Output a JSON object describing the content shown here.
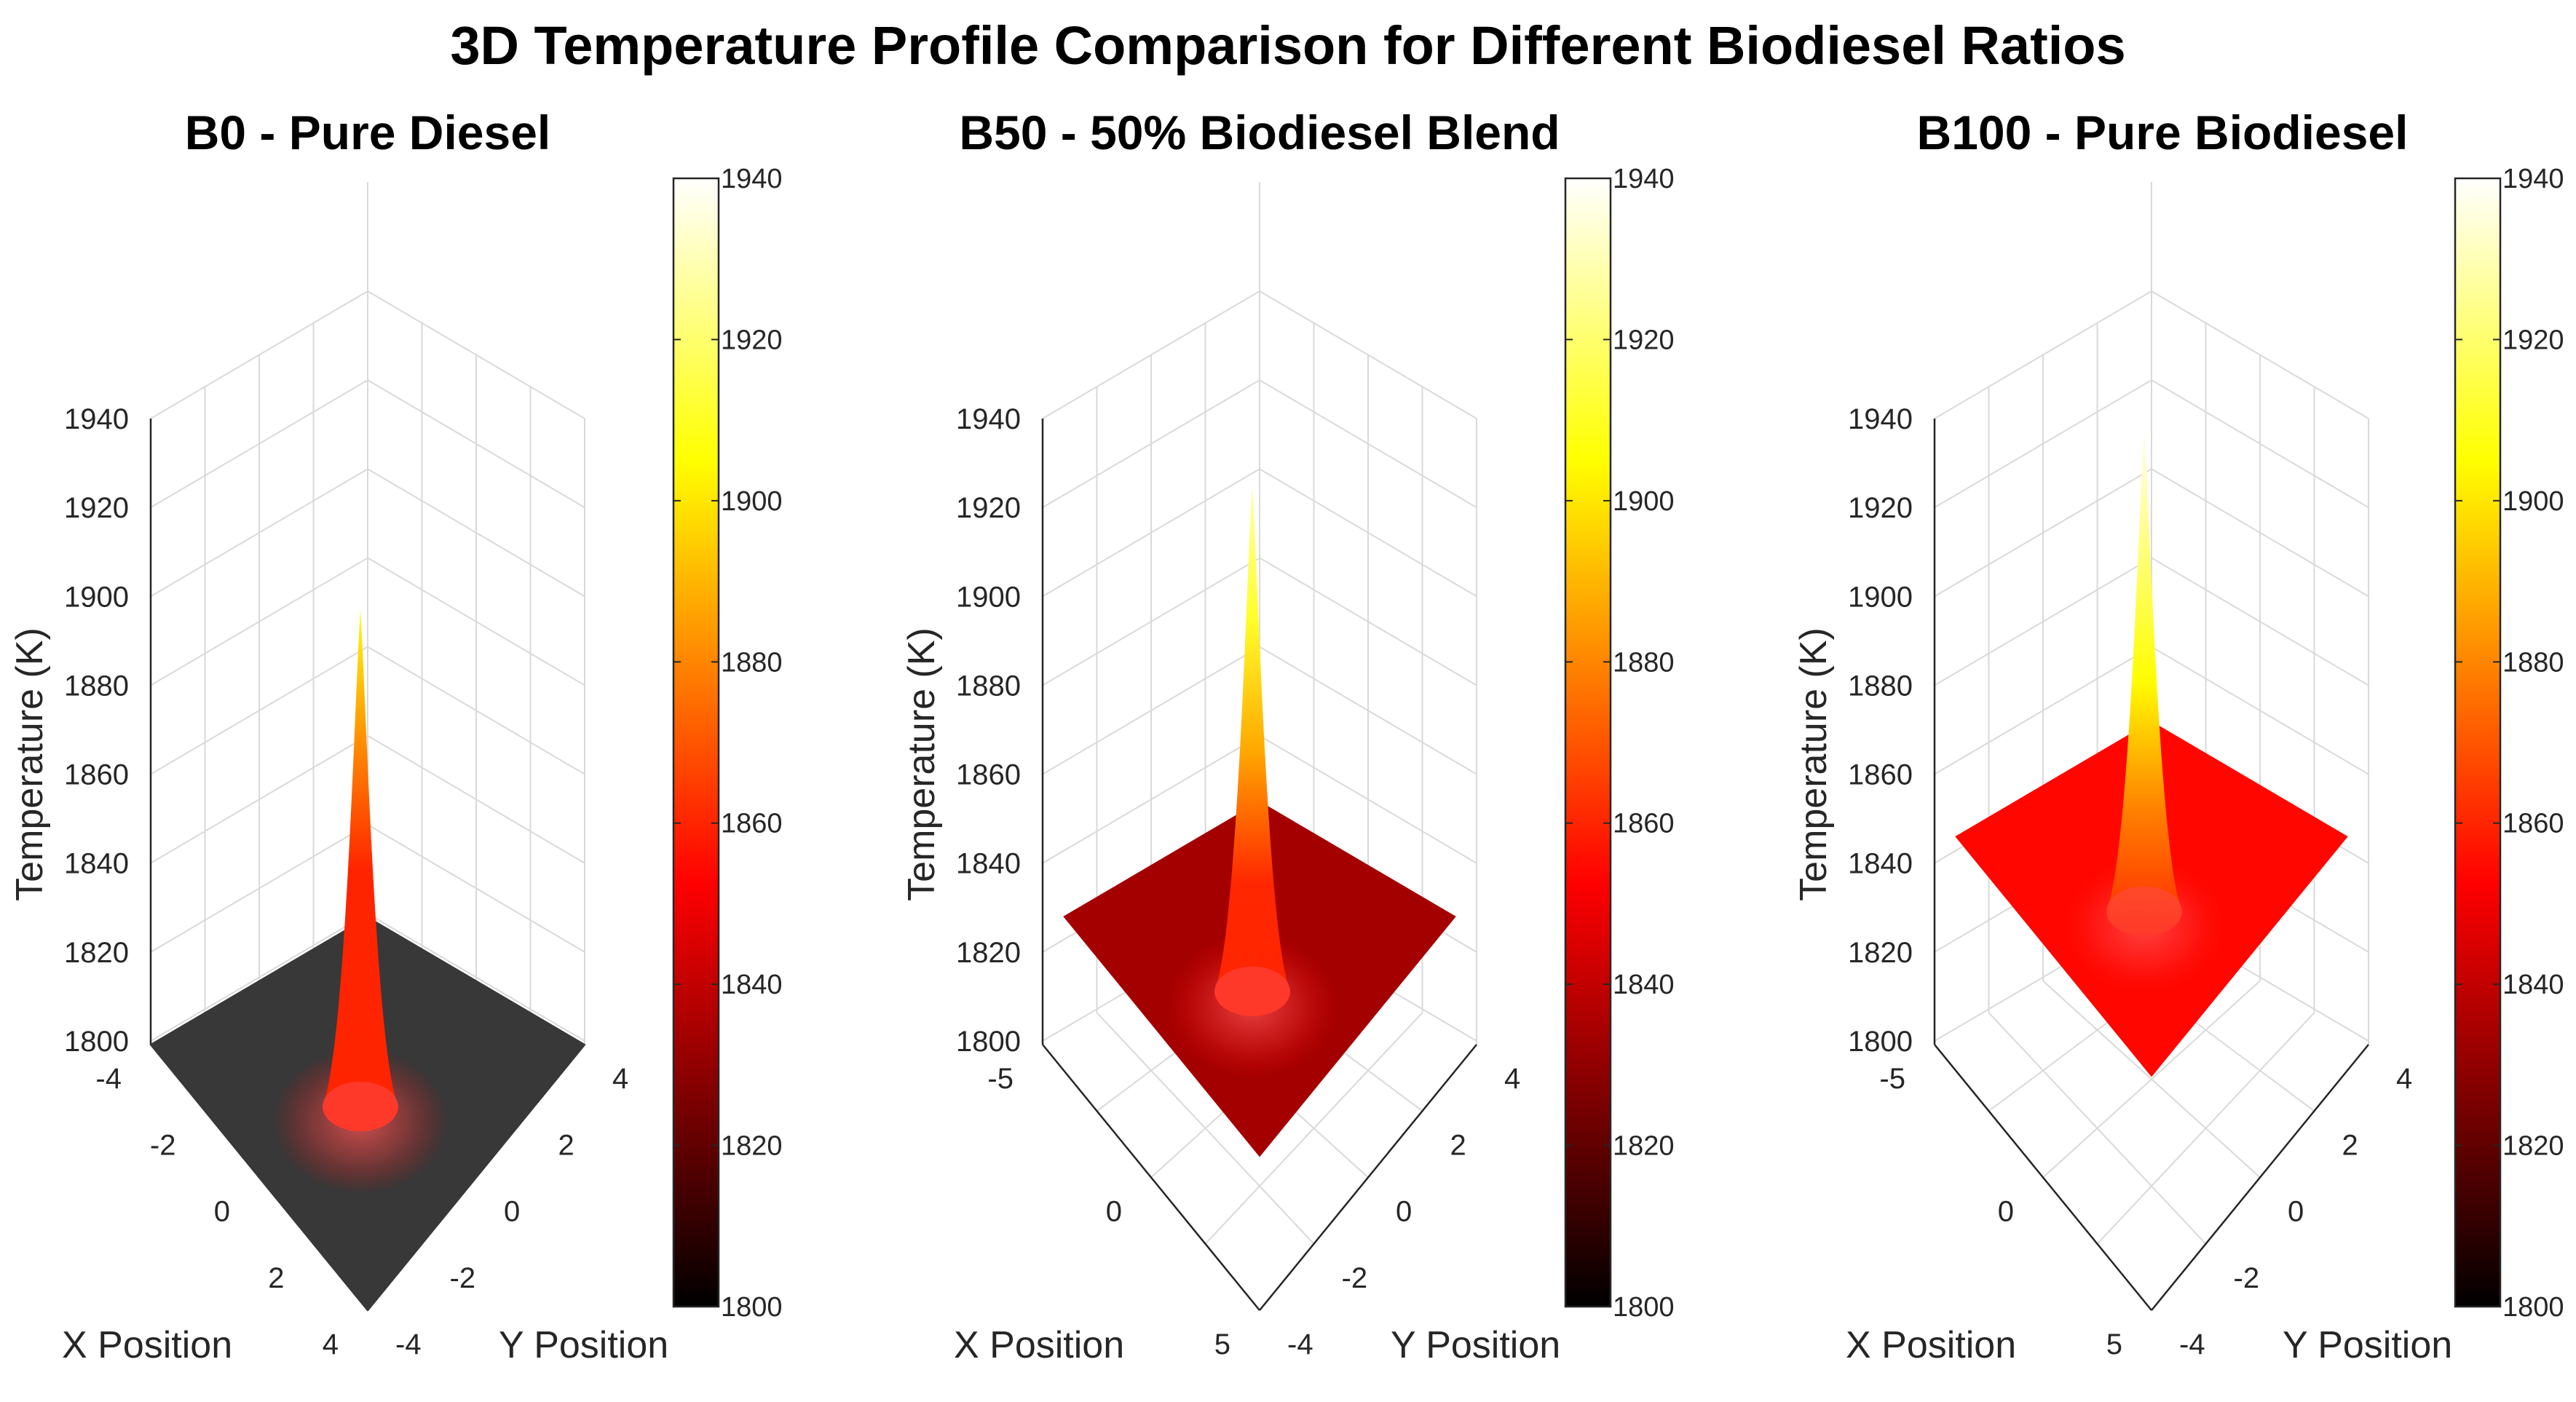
{
  "chart_data": {
    "title": "3D Temperature Profile Comparison for Different Biodiesel Ratios",
    "type": "surface",
    "colormap": "hot",
    "colormap_stops": [
      "#000000",
      "#ff0000",
      "#ffff00",
      "#ffffff"
    ],
    "subplots": [
      {
        "title": "B0 - Pure Diesel",
        "xlabel": "X Position",
        "ylabel": "Y Position",
        "zlabel": "Temperature (K)",
        "xlim": [
          -4,
          4
        ],
        "ylim": [
          -4,
          4
        ],
        "zlim": [
          1800,
          1940
        ],
        "xticks": [
          -4,
          -2,
          0,
          2,
          4
        ],
        "yticks": [
          -4,
          -2,
          0,
          2,
          4
        ],
        "zticks": [
          1800,
          1820,
          1840,
          1860,
          1880,
          1900,
          1920,
          1940
        ],
        "base_temperature": 1800,
        "peak_temperature": 1897,
        "colorbar": {
          "range": [
            1800,
            1940
          ],
          "ticks": [
            1800,
            1820,
            1840,
            1860,
            1880,
            1900,
            1920,
            1940
          ]
        }
      },
      {
        "title": "B50 - 50% Biodiesel Blend",
        "xlabel": "X Position",
        "ylabel": "Y Position",
        "zlabel": "Temperature (K)",
        "xlim": [
          -5,
          5
        ],
        "ylim": [
          -4,
          4
        ],
        "zlim": [
          1800,
          1940
        ],
        "xticks": [
          -5,
          0,
          5
        ],
        "yticks": [
          -4,
          -2,
          0,
          2,
          4
        ],
        "zticks": [
          1800,
          1820,
          1840,
          1860,
          1880,
          1900,
          1920,
          1940
        ],
        "base_temperature": 1830,
        "peak_temperature": 1925,
        "colorbar": {
          "range": [
            1800,
            1940
          ],
          "ticks": [
            1800,
            1820,
            1840,
            1860,
            1880,
            1900,
            1920,
            1940
          ]
        }
      },
      {
        "title": "B100 - Pure Biodiesel",
        "xlabel": "X Position",
        "ylabel": "Y Position",
        "zlabel": "Temperature (K)",
        "xlim": [
          -5,
          5
        ],
        "ylim": [
          -4,
          4
        ],
        "zlim": [
          1800,
          1940
        ],
        "xticks": [
          -5,
          0,
          5
        ],
        "yticks": [
          -4,
          -2,
          0,
          2,
          4
        ],
        "zticks": [
          1800,
          1820,
          1840,
          1860,
          1880,
          1900,
          1920,
          1940
        ],
        "base_temperature": 1848,
        "peak_temperature": 1938,
        "colorbar": {
          "range": [
            1800,
            1940
          ],
          "ticks": [
            1800,
            1820,
            1840,
            1860,
            1880,
            1900,
            1920,
            1940
          ]
        }
      }
    ]
  }
}
